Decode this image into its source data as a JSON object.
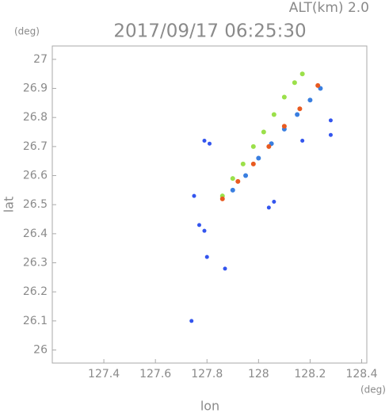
{
  "chart_data": {
    "type": "scatter",
    "title": "2017/09/17 06:25:30",
    "subtitle": "ALT(km) 2.0",
    "y_unit": "(deg)",
    "x_unit": "(deg)",
    "xlabel": "lon",
    "ylabel": "lat",
    "xlim": [
      127.2,
      128.42
    ],
    "ylim": [
      25.955,
      27.046
    ],
    "xticks": [
      127.4,
      127.6,
      127.8,
      128.0,
      128.2,
      128.4
    ],
    "yticks": [
      26.0,
      26.1,
      26.2,
      26.3,
      26.4,
      26.5,
      26.6,
      26.7,
      26.8,
      26.9,
      27.0
    ],
    "series": [
      {
        "color": "#9be04a",
        "x": [
          127.86,
          127.9,
          127.94,
          127.98,
          128.02,
          128.06,
          128.1,
          128.14,
          128.17
        ],
        "values": [
          26.53,
          26.59,
          26.64,
          26.7,
          26.75,
          26.81,
          26.87,
          26.92,
          26.95
        ]
      },
      {
        "color": "#3a7fe0",
        "x": [
          127.9,
          127.95,
          128.0,
          128.05,
          128.1,
          128.15,
          128.2,
          128.24
        ],
        "values": [
          26.55,
          26.6,
          26.66,
          26.71,
          26.76,
          26.81,
          26.86,
          26.9
        ]
      },
      {
        "color": "#e85a20",
        "x": [
          127.86,
          127.92,
          127.98,
          128.04,
          128.1,
          128.16,
          128.23
        ],
        "values": [
          26.52,
          26.58,
          26.64,
          26.7,
          26.77,
          26.83,
          26.91
        ]
      },
      {
        "color": "#3355ee",
        "x": [
          128.28,
          128.28,
          128.17,
          127.74,
          127.77,
          127.79,
          128.04,
          128.06,
          127.81,
          127.79,
          127.75,
          127.8,
          127.87
        ],
        "values": [
          26.79,
          26.74,
          26.72,
          26.1,
          26.43,
          26.41,
          26.49,
          26.51,
          26.71,
          26.72,
          26.53,
          26.32,
          26.28
        ]
      }
    ]
  }
}
